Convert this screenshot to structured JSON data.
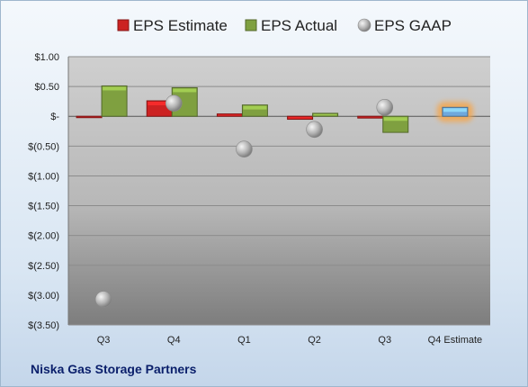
{
  "chart_data": {
    "type": "bar",
    "categories": [
      "Q3",
      "Q4",
      "Q1",
      "Q2",
      "Q3",
      "Q4 Estimate"
    ],
    "series": [
      {
        "name": "EPS Estimate",
        "color": "#cc2222",
        "values": [
          -0.02,
          0.26,
          0.04,
          -0.05,
          -0.03,
          null
        ]
      },
      {
        "name": "EPS Actual",
        "color": "#7fa040",
        "values": [
          0.51,
          0.48,
          0.19,
          0.05,
          -0.27,
          0.15
        ]
      },
      {
        "name": "EPS GAAP",
        "color": "#b0b0b0",
        "type": "scatter",
        "values": [
          -3.07,
          0.22,
          -0.55,
          -0.22,
          0.15,
          null
        ]
      }
    ],
    "highlight": {
      "category_index": 5,
      "color": "#6fa8dc",
      "glow": "#f5a64b"
    },
    "ylim": [
      -3.5,
      1.0
    ],
    "yticks": [
      1.0,
      0.5,
      0,
      -0.5,
      -1.0,
      -1.5,
      -2.0,
      -2.5,
      -3.0,
      -3.5
    ],
    "ytick_labels": [
      "$1.00",
      "$0.50",
      "$-",
      "$(0.50)",
      "$(1.00)",
      "$(1.50)",
      "$(2.00)",
      "$(2.50)",
      "$(3.00)",
      "$(3.50)"
    ],
    "grid": true,
    "legend": "top",
    "title": "",
    "xlabel": "",
    "ylabel": ""
  },
  "footer": {
    "company": "Niska Gas Storage Partners"
  }
}
